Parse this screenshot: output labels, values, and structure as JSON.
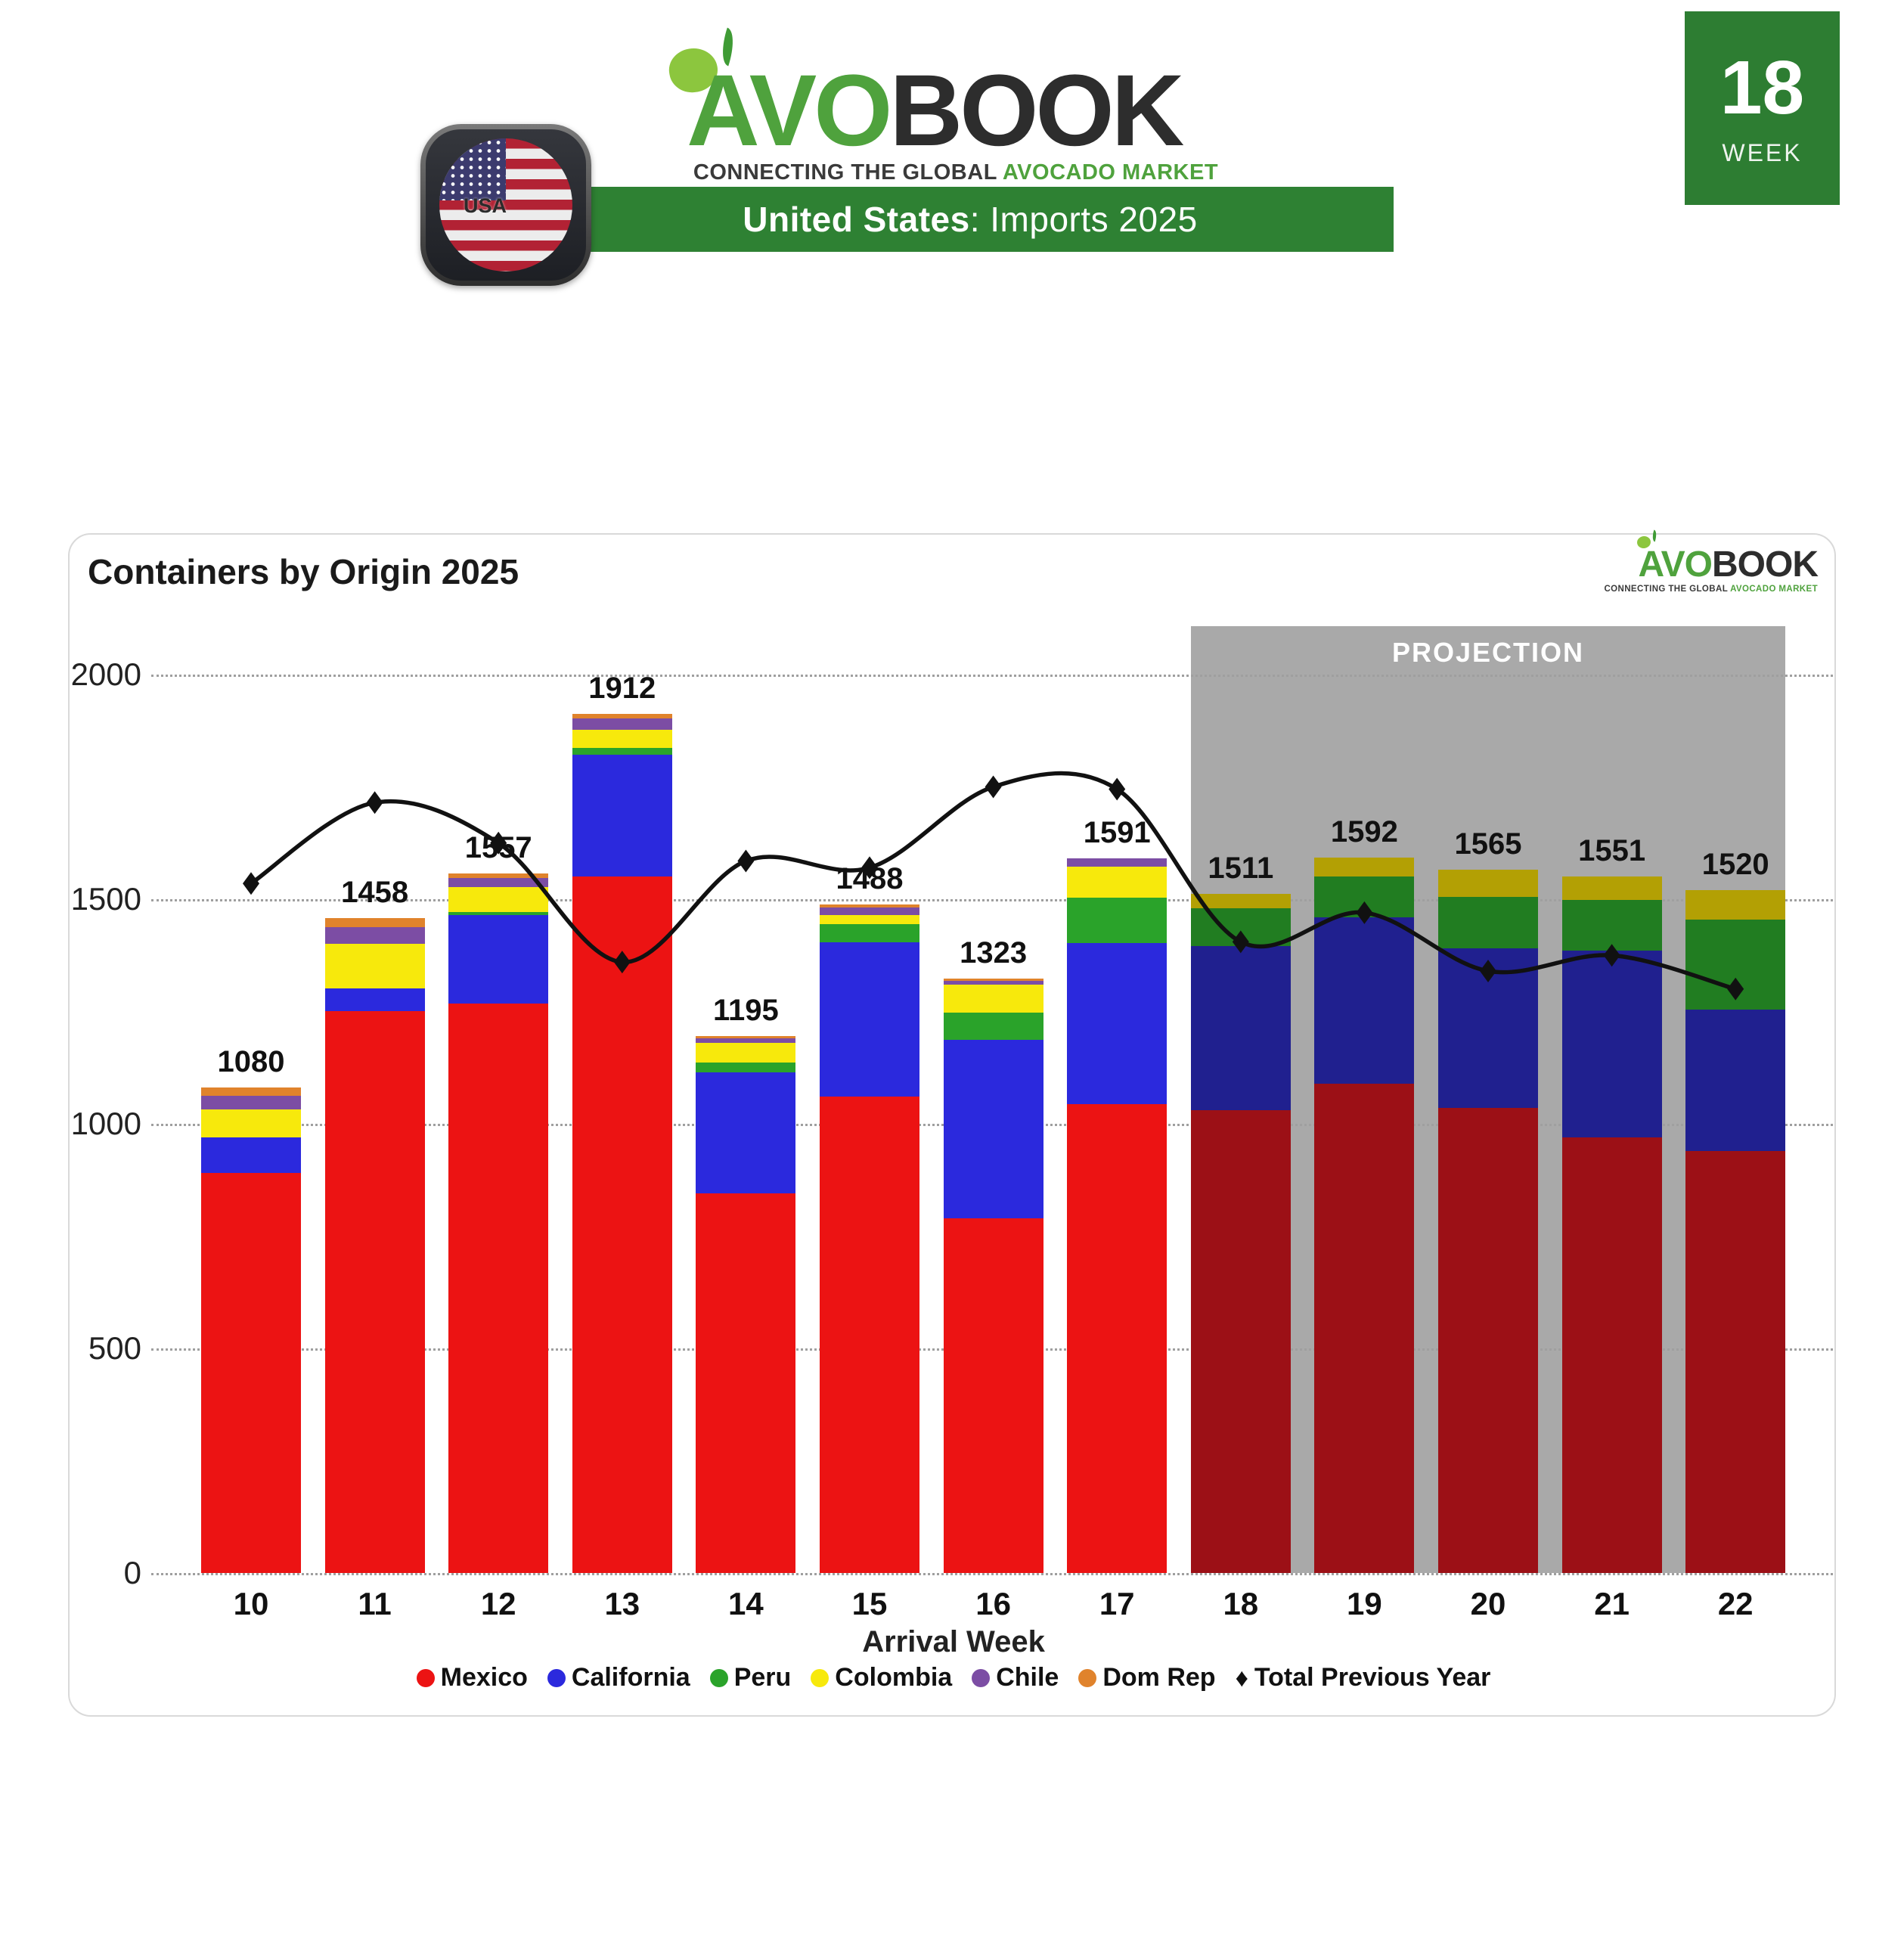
{
  "header": {
    "logo": {
      "word_green": "AVO",
      "word_dark": "BOOK",
      "tagline_dark": "CONNECTING THE GLOBAL ",
      "tagline_green": "AVOCADO MARKET"
    },
    "flag_label": "USA",
    "banner": {
      "bold": "United States",
      "rest": ": Imports 2025"
    },
    "week_badge": {
      "number": "18",
      "label": "WEEK"
    }
  },
  "card": {
    "title": "Containers by Origin 2025",
    "projection_label": "PROJECTION"
  },
  "chart_data": {
    "type": "bar",
    "subtype": "stacked-bar-with-line",
    "title": "Containers by Origin 2025",
    "xlabel": "Arrival Week",
    "ylabel": "",
    "ylim": [
      0,
      2000
    ],
    "yticks": [
      0,
      500,
      1000,
      1500,
      2000
    ],
    "grid": "dotted-horizontal",
    "legend_position": "bottom",
    "categories": [
      10,
      11,
      12,
      13,
      14,
      15,
      16,
      17,
      18,
      19,
      20,
      21,
      22
    ],
    "projection_weeks": [
      18,
      19,
      20,
      21,
      22
    ],
    "totals": [
      1080,
      1458,
      1557,
      1912,
      1195,
      1488,
      1323,
      1591,
      1511,
      1592,
      1565,
      1551,
      1520
    ],
    "series": [
      {
        "name": "Mexico",
        "color": "#ec1313",
        "projection_color": "#9c1016",
        "values": [
          890,
          1250,
          1267,
          1550,
          845,
          1060,
          790,
          1044,
          1030,
          1090,
          1035,
          970,
          940
        ]
      },
      {
        "name": "California",
        "color": "#2b29dd",
        "projection_color": "#20208f",
        "values": [
          80,
          52,
          197,
          272,
          270,
          344,
          397,
          359,
          365,
          370,
          355,
          416,
          315
        ]
      },
      {
        "name": "Peru",
        "color": "#2aa32a",
        "projection_color": "#217d21",
        "values": [
          0,
          0,
          7,
          15,
          21,
          40,
          60,
          100,
          85,
          90,
          115,
          113,
          200
        ]
      },
      {
        "name": "Colombia",
        "color": "#f7e90c",
        "projection_color": "#b3a004",
        "values": [
          62,
          98,
          56,
          40,
          44,
          21,
          62,
          70,
          31,
          42,
          60,
          52,
          65
        ]
      },
      {
        "name": "Chile",
        "color": "#7c4da4",
        "projection_color": "#5e3a7d",
        "values": [
          30,
          38,
          20,
          25,
          10,
          16,
          10,
          18,
          0,
          0,
          0,
          0,
          0
        ]
      },
      {
        "name": "Dom Rep",
        "color": "#e0832c",
        "projection_color": "#a86121",
        "values": [
          18,
          20,
          10,
          10,
          5,
          7,
          4,
          0,
          0,
          0,
          0,
          0,
          0
        ]
      }
    ],
    "line": {
      "name": "Total Previous Year",
      "color": "#111111",
      "values": [
        1535,
        1715,
        1625,
        1360,
        1585,
        1570,
        1750,
        1745,
        1405,
        1470,
        1340,
        1375,
        1300
      ]
    },
    "projection_box_color": "#a9a9a9"
  }
}
